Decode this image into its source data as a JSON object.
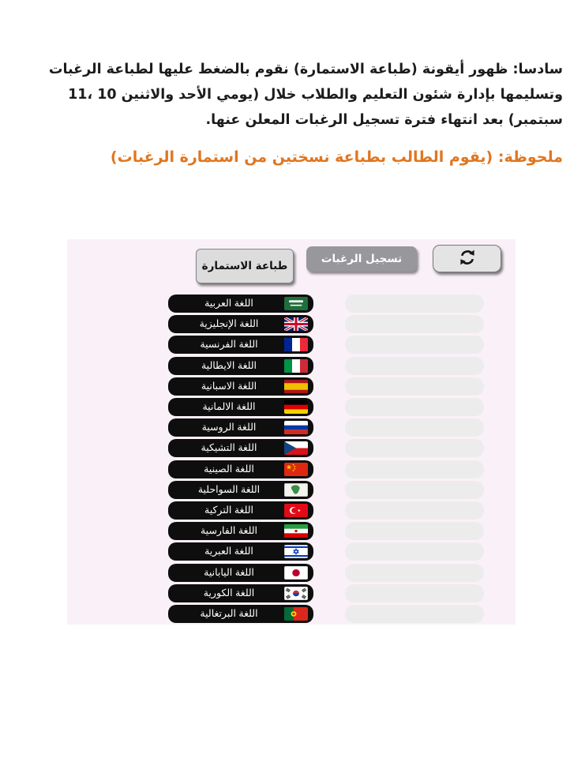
{
  "instructions": {
    "lines": [
      "سادسا: ظهور أيقونة (طباعة الاستمارة) نقوم بالضغط عليها لطباعة الرغبات",
      "وتسليمها بإدارة شئون التعليم والطلاب خلال (يومي الأحد والاثنين 10 ،11",
      "سبتمبر) بعد انتهاء فترة تسجيل الرغبات المعلن عنها."
    ],
    "note": "ملحوظة: (يقوم الطالب بطباعة نسختين من استمارة الرغبات)",
    "note_color": "#e0761f"
  },
  "panel": {
    "background": "#faf1f8",
    "row_color": "#0e0e0e",
    "slot_color": "#ececec",
    "buttons": {
      "print_label": "طباعة الاستمارة",
      "register_label": "تسجيل الرغبات",
      "register_color": "#97979c",
      "refresh_icon": "refresh-circular-arrows"
    },
    "languages": [
      {
        "label": "اللغة العربية",
        "flag": "saudi-arabia"
      },
      {
        "label": "اللغة الإنجليزية",
        "flag": "united-kingdom"
      },
      {
        "label": "اللغة الفرنسية",
        "flag": "france"
      },
      {
        "label": "اللغة الايطالية",
        "flag": "italy"
      },
      {
        "label": "اللغة الاسبانية",
        "flag": "spain"
      },
      {
        "label": "اللغة الالمانية",
        "flag": "germany"
      },
      {
        "label": "اللغة الروسية",
        "flag": "russia"
      },
      {
        "label": "اللغة التشيكية",
        "flag": "czech-republic"
      },
      {
        "label": "اللغة الصينية",
        "flag": "china"
      },
      {
        "label": "اللغة السواحلية",
        "flag": "swahili-africa"
      },
      {
        "label": "اللغة التركية",
        "flag": "turkey"
      },
      {
        "label": "اللغة الفارسية",
        "flag": "iran"
      },
      {
        "label": "اللغة العبرية",
        "flag": "israel"
      },
      {
        "label": "اللغة اليابانية",
        "flag": "japan"
      },
      {
        "label": "اللغة الكورية",
        "flag": "south-korea"
      },
      {
        "label": "اللغة البرتغالية",
        "flag": "portugal"
      }
    ]
  }
}
